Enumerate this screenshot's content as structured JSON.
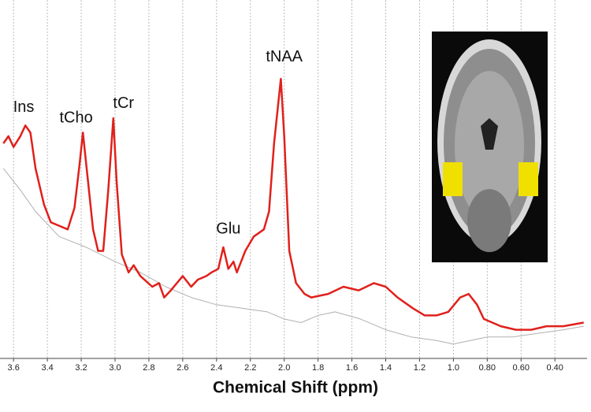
{
  "chart_data": {
    "type": "line",
    "x_label": "Chemical Shift (ppm)",
    "xlim": [
      3.68,
      0.21
    ],
    "ylim": [
      0,
      100
    ],
    "xticks": [
      3.6,
      3.4,
      3.2,
      {
        "value": 3,
        "label": "3.0"
      },
      2.8,
      2.6,
      2.4,
      2.2,
      {
        "value": 2,
        "label": "2.0"
      },
      1.8,
      1.6,
      1.4,
      1.2,
      {
        "value": 1,
        "label": "1.0"
      },
      {
        "value": 0.8,
        "label": "0.80"
      },
      {
        "value": 0.6,
        "label": "0.60"
      },
      {
        "value": 0.4,
        "label": "0.40"
      }
    ],
    "grid": true,
    "series": [
      {
        "color": "#e0201b",
        "x": [
          3.66,
          3.63,
          3.6,
          3.56,
          3.53,
          3.5,
          3.47,
          3.42,
          3.38,
          3.33,
          3.28,
          3.24,
          3.21,
          3.19,
          3.17,
          3.13,
          3.1,
          3.07,
          3.04,
          3.01,
          2.99,
          2.96,
          2.92,
          2.89,
          2.85,
          2.78,
          2.74,
          2.71,
          2.67,
          2.6,
          2.55,
          2.51,
          2.46,
          2.43,
          2.39,
          2.36,
          2.33,
          2.3,
          2.28,
          2.23,
          2.18,
          2.12,
          2.09,
          2.06,
          2.02,
          2.0,
          1.97,
          1.93,
          1.88,
          1.84,
          1.74,
          1.65,
          1.56,
          1.47,
          1.4,
          1.33,
          1.24,
          1.17,
          1.1,
          1.03,
          0.96,
          0.91,
          0.86,
          0.82,
          0.72,
          0.63,
          0.54,
          0.45,
          0.35,
          0.23
        ],
        "values": [
          60,
          62,
          59,
          62,
          65,
          63,
          53,
          43,
          38,
          37,
          36,
          42,
          54,
          63,
          54,
          36,
          30,
          30,
          47,
          67,
          49,
          29,
          24,
          26,
          23,
          20,
          21,
          17,
          19,
          23,
          20,
          22,
          23,
          24,
          25,
          31,
          25,
          27,
          24,
          30,
          34,
          36,
          41,
          60,
          78,
          62,
          30,
          21,
          18,
          17,
          18,
          20,
          19,
          21,
          20,
          17,
          14,
          12,
          12,
          13,
          17,
          18,
          15,
          11,
          9,
          8,
          8,
          9,
          9,
          10
        ]
      },
      {
        "color": "#b0b0b0",
        "x": [
          3.66,
          3.56,
          3.47,
          3.33,
          3.17,
          3.0,
          2.85,
          2.7,
          2.55,
          2.4,
          2.25,
          2.1,
          2.0,
          1.9,
          1.8,
          1.7,
          1.55,
          1.4,
          1.25,
          1.1,
          1.0,
          0.9,
          0.8,
          0.65,
          0.5,
          0.35,
          0.23
        ],
        "values": [
          53,
          47,
          41,
          34,
          31,
          27,
          24,
          20,
          17,
          15,
          14,
          13,
          11,
          10,
          12,
          13,
          11,
          8,
          6,
          5,
          4,
          5,
          6,
          6,
          7,
          8,
          9
        ]
      }
    ],
    "annotations": [
      {
        "text": "Ins",
        "x": 3.54,
        "y": 70
      },
      {
        "text": "tCho",
        "x": 3.23,
        "y": 67
      },
      {
        "text": "tCr",
        "x": 2.95,
        "y": 71
      },
      {
        "text": "Glu",
        "x": 2.33,
        "y": 36
      },
      {
        "text": "tNAA",
        "x": 2.0,
        "y": 84
      }
    ]
  }
}
